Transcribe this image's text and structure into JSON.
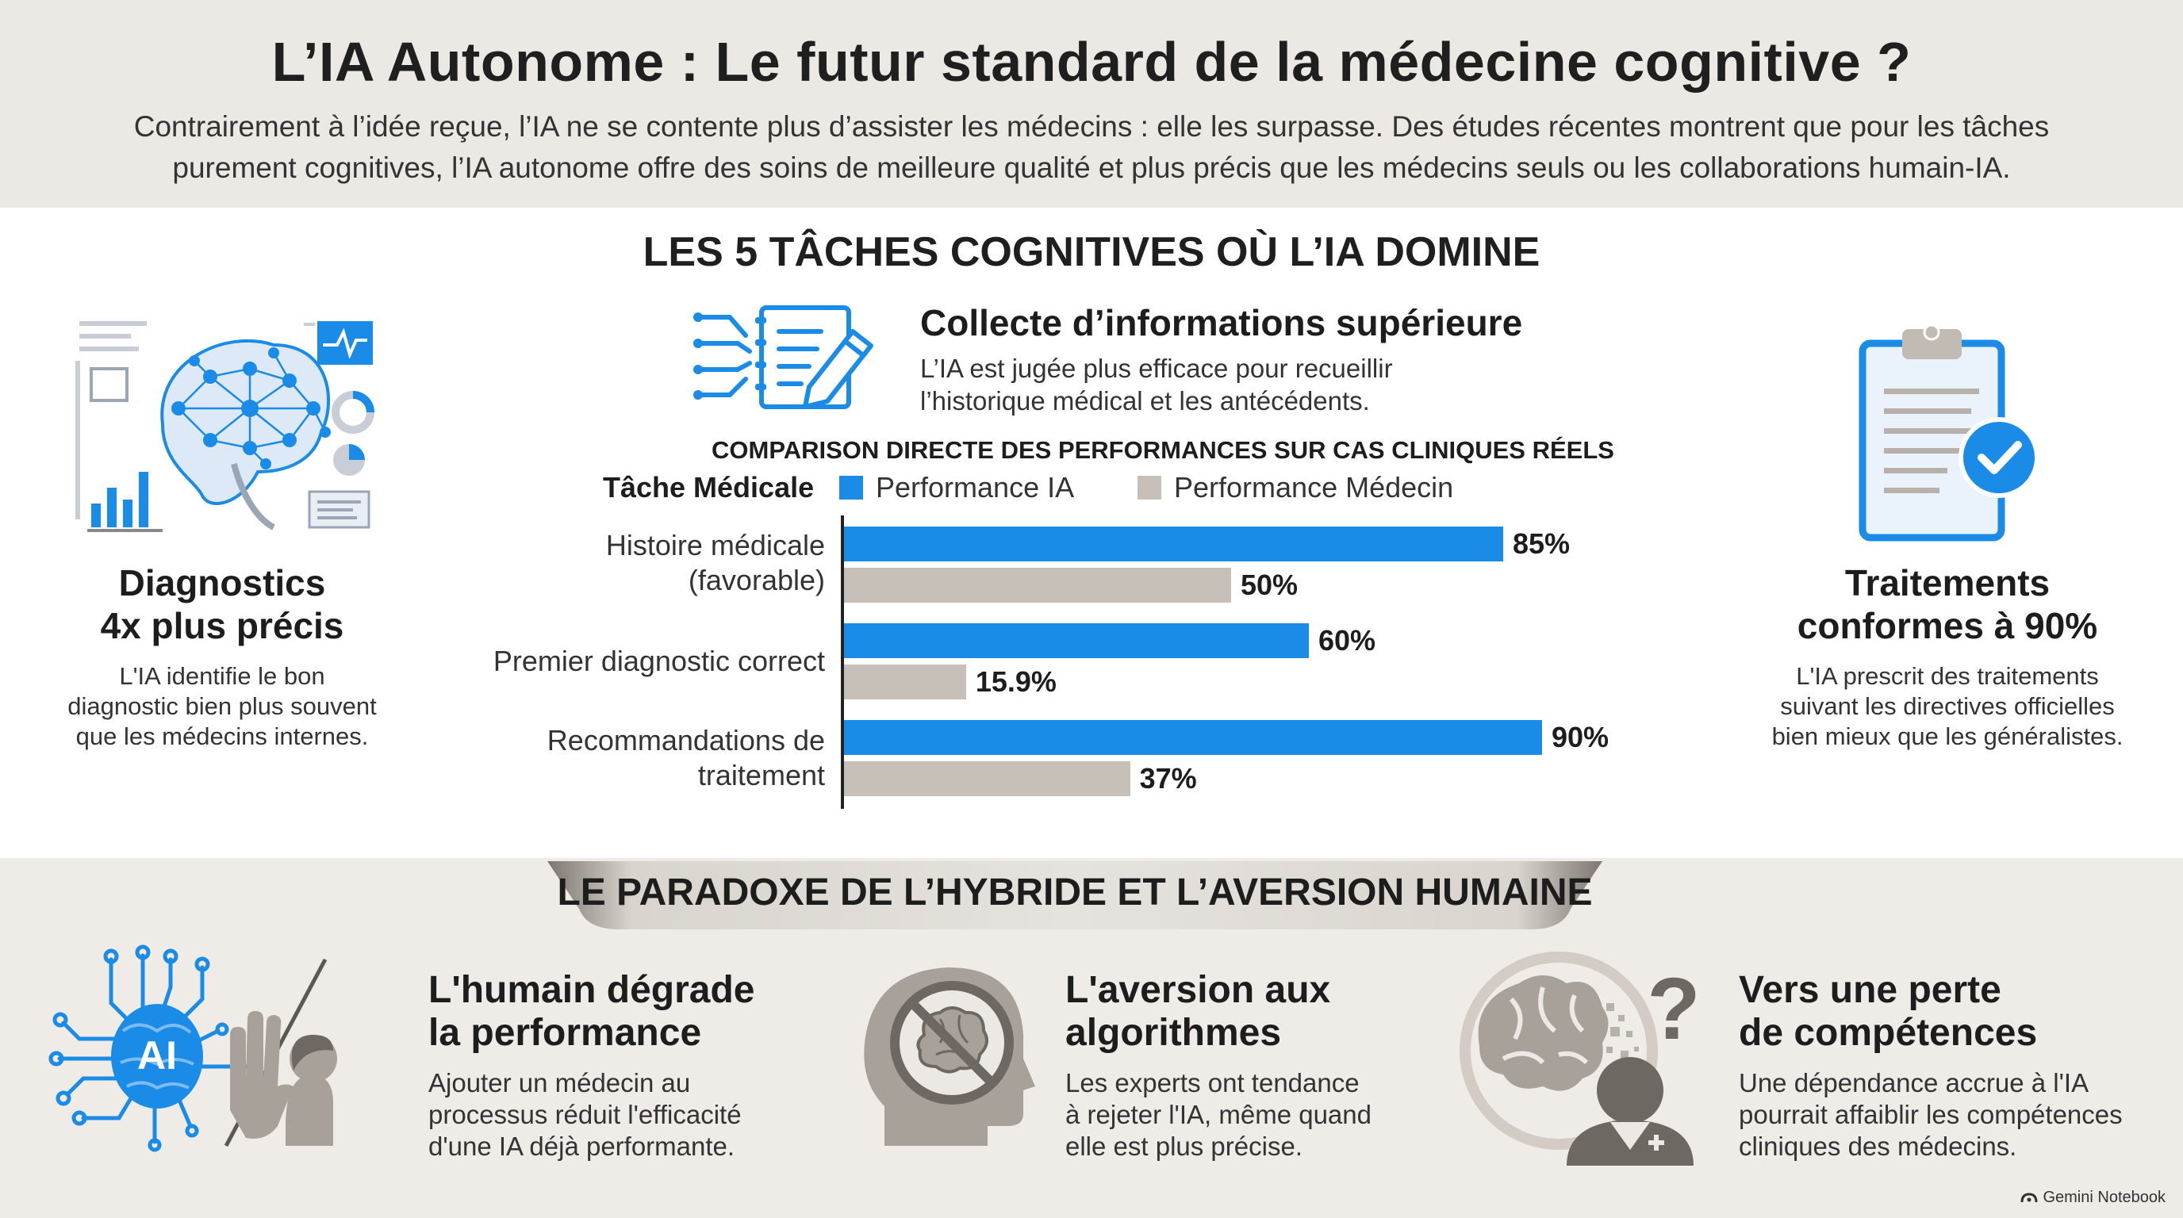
{
  "header": {
    "title": "L’IA Autonome : Le futur standard de la médecine cognitive ?",
    "subtitle_line1": "Contrairement à l’idée reçue, l’IA ne se contente plus d’assister les médecins : elle les surpasse. Des études récentes montrent que pour les tâches",
    "subtitle_line2": "purement cognitives, l’IA autonome offre des soins de meilleure qualité et plus précis que les médecins seuls ou les collaborations humain-IA."
  },
  "section": {
    "title": "LES 5 TÂCHES COGNITIVES OÙ L’IA DOMINE"
  },
  "left_card": {
    "title_line1": "Diagnostics",
    "title_line2": "4x plus précis",
    "desc_line1": "L'IA identifie le bon",
    "desc_line2": "diagnostic bien plus souvent",
    "desc_line3": "que les médecins internes.",
    "icon": "brain-network-icon"
  },
  "collect_card": {
    "title": "Collecte d’informations supérieure",
    "desc_line1": "L’IA est jugée plus efficace pour recueillir",
    "desc_line2": "l’historique médical et les antécédents.",
    "icon": "notebook-pen-icon"
  },
  "right_card": {
    "title_line1": "Traitements",
    "title_line2": "conformes à 90%",
    "desc_line1": "L'IA prescrit des traitements",
    "desc_line2": "suivant les directives officielles",
    "desc_line3": "bien mieux que les généralistes.",
    "icon": "clipboard-check-icon"
  },
  "chart_data": {
    "type": "bar",
    "orientation": "horizontal",
    "title": "COMPARISON DIRECTE DES PERFORMANCES SUR CAS CLINIQUES RÉELS",
    "category_header": "Tâche Médicale",
    "categories": [
      [
        "Histoire médicale",
        "(favorable)"
      ],
      [
        "Premier diagnostic correct"
      ],
      [
        "Recommandations de",
        "traitement"
      ]
    ],
    "series": [
      {
        "name": "Performance IA",
        "color": "#1a8be6",
        "values": [
          85,
          60,
          90
        ],
        "labels": [
          "85%",
          "60%",
          "90%"
        ]
      },
      {
        "name": "Performance Médecin",
        "color": "#c7c0b8",
        "values": [
          50,
          15.9,
          37
        ],
        "labels": [
          "50%",
          "15.9%",
          "37%"
        ]
      }
    ],
    "xlim": [
      0,
      100
    ],
    "grid": false,
    "legend_position": "top"
  },
  "bottom": {
    "banner": "LE PARADOXE DE L’HYBRIDE ET L’AVERSION HUMAINE",
    "items": [
      {
        "title_line1": "L'humain dégrade",
        "title_line2": "la performance",
        "desc_line1": "Ajouter un médecin au",
        "desc_line2": "processus réduit l'efficacité",
        "desc_line3": "d'une IA déjà performante.",
        "icon_text": "AI",
        "icon": "ai-chip-hand-icon"
      },
      {
        "title_line1": "L'aversion aux",
        "title_line2": "algorithmes",
        "desc_line1": "Les experts ont tendance",
        "desc_line2": "à rejeter l'IA, même quand",
        "desc_line3": "elle est plus précise.",
        "icon": "brain-prohibited-icon"
      },
      {
        "title_line1": "Vers une perte",
        "title_line2": "de compétences",
        "desc_line1": "Une dépendance accrue à l'IA",
        "desc_line2": "pourrait affaiblir les compétences",
        "desc_line3": "cliniques des médecins.",
        "icon": "doctor-brain-question-icon"
      }
    ]
  },
  "footer": {
    "brand": "Gemini Notebook",
    "icon": "gemini-logo-icon"
  },
  "colors": {
    "blue": "#1a8be6",
    "grey_bar": "#c7c0b8",
    "header_bg": "#ece9e5"
  }
}
